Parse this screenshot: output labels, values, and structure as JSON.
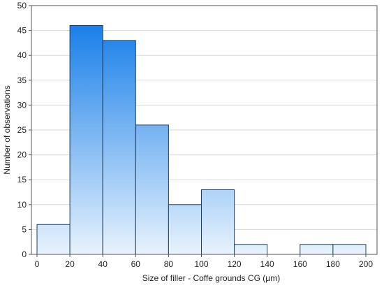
{
  "chart_data": {
    "type": "histogram",
    "title": "",
    "xlabel": "Size of filler - Coffe grounds CG (µm)",
    "ylabel": "Number of observations",
    "xlim": [
      0,
      200
    ],
    "ylim": [
      0,
      50
    ],
    "x_ticks": [
      0,
      20,
      40,
      60,
      80,
      100,
      120,
      140,
      160,
      180,
      200
    ],
    "y_ticks": [
      0,
      5,
      10,
      15,
      20,
      25,
      30,
      35,
      40,
      45,
      50
    ],
    "grid": "horizontal",
    "bins": [
      {
        "from": 0,
        "to": 20,
        "value": 6
      },
      {
        "from": 20,
        "to": 40,
        "value": 46
      },
      {
        "from": 40,
        "to": 60,
        "value": 43
      },
      {
        "from": 60,
        "to": 80,
        "value": 26
      },
      {
        "from": 80,
        "to": 100,
        "value": 10
      },
      {
        "from": 100,
        "to": 120,
        "value": 13
      },
      {
        "from": 120,
        "to": 140,
        "value": 2
      },
      {
        "from": 140,
        "to": 160,
        "value": 0
      },
      {
        "from": 160,
        "to": 180,
        "value": 2
      },
      {
        "from": 180,
        "to": 200,
        "value": 2
      }
    ],
    "colors": {
      "bar_top": "#1a7fe8",
      "bar_bottom": "#e8f3fd",
      "bar_stroke": "#1f3f60",
      "grid": "#d8d8d8",
      "axis": "#555555"
    }
  }
}
